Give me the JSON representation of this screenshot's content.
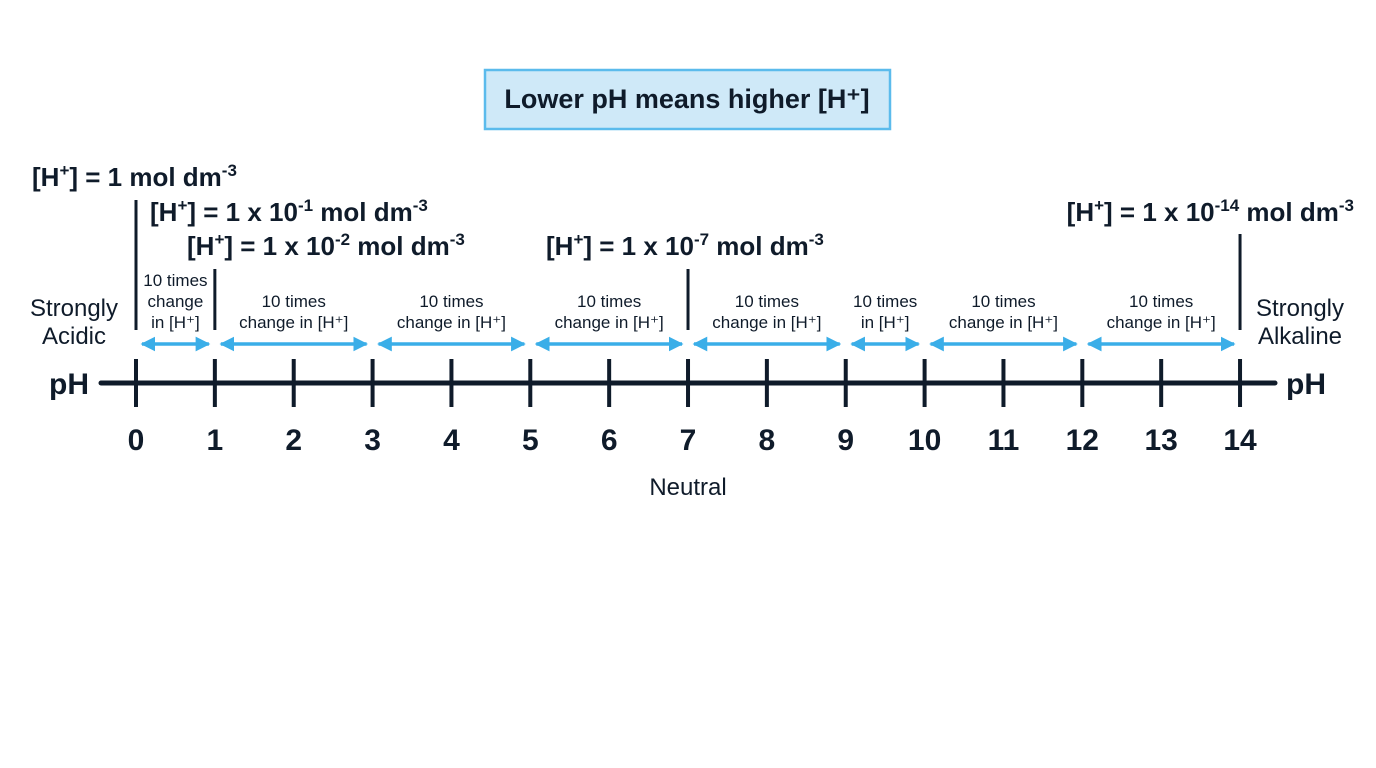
{
  "title": "Lower pH means higher [H⁺]",
  "axis_label_left": "pH",
  "axis_label_right": "pH",
  "ticks": [
    "0",
    "1",
    "2",
    "3",
    "4",
    "5",
    "6",
    "7",
    "8",
    "9",
    "10",
    "11",
    "12",
    "13",
    "14"
  ],
  "neutral_label": "Neutral",
  "left_end": {
    "line1": "Strongly",
    "line2": "Acidic"
  },
  "right_end": {
    "line1": "Strongly",
    "line2": "Alkaline"
  },
  "concentrations": [
    {
      "prefix": "[H",
      "charge": "+",
      "mid": "] = 1 mol dm",
      "exp": "-3",
      "pH": 0
    },
    {
      "prefix": "[H",
      "charge": "+",
      "mid": "] = 1 x 10",
      "exp1": "-1",
      "unit": " mol dm",
      "exp": "-3",
      "pH": 1
    },
    {
      "prefix": "[H",
      "charge": "+",
      "mid": "] = 1 x 10",
      "exp1": "-2",
      "unit": " mol dm",
      "exp": "-3",
      "pH": 2
    },
    {
      "prefix": "[H",
      "charge": "+",
      "mid": "] = 1 x 10",
      "exp1": "-7",
      "unit": " mol dm",
      "exp": "-3",
      "pH": 7
    },
    {
      "prefix": "[H",
      "charge": "+",
      "mid": "] = 1 x 10",
      "exp1": "-14",
      "unit": " mol dm",
      "exp": "-3",
      "pH": 14
    }
  ],
  "change_labels": [
    {
      "from": 0,
      "to": 1,
      "lines": [
        "10 times",
        "change",
        "in [H⁺]"
      ]
    },
    {
      "from": 1,
      "to": 3,
      "lines": [
        "10 times",
        "change in [H⁺]"
      ]
    },
    {
      "from": 3,
      "to": 5,
      "lines": [
        "10 times",
        "change in [H⁺]"
      ]
    },
    {
      "from": 5,
      "to": 7,
      "lines": [
        "10 times",
        "change in [H⁺]"
      ]
    },
    {
      "from": 7,
      "to": 9,
      "lines": [
        "10 times",
        "change in [H⁺]"
      ]
    },
    {
      "from": 9,
      "to": 10,
      "lines": [
        "10 times",
        "in [H⁺]"
      ]
    },
    {
      "from": 10,
      "to": 12,
      "lines": [
        "10 times",
        "change in [H⁺]"
      ]
    },
    {
      "from": 12,
      "to": 14,
      "lines": [
        "10 times",
        "change in [H⁺]"
      ]
    }
  ],
  "colors": {
    "axis": "#0f1b2a",
    "arrow": "#3aaee8",
    "title_bg": "#cfe9f8",
    "title_border": "#5bbbec"
  }
}
